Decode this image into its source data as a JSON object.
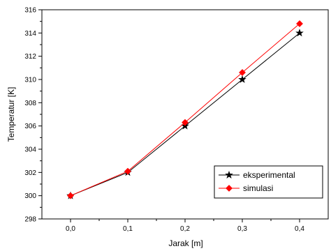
{
  "chart_data": {
    "type": "line",
    "title": "",
    "xlabel": "Jarak [m]",
    "ylabel": "Temperatur [K]",
    "x": [
      0.0,
      0.1,
      0.2,
      0.3,
      0.4
    ],
    "x_tick_labels": [
      "0,0",
      "0,1",
      "0,2",
      "0,3",
      "0,4"
    ],
    "xlim": [
      -0.05,
      0.45
    ],
    "ylim": [
      298,
      316
    ],
    "y_ticks": [
      298,
      300,
      302,
      304,
      306,
      308,
      310,
      312,
      314,
      316
    ],
    "grid": false,
    "legend_position": "bottom-right",
    "series": [
      {
        "name": "eksperimental",
        "values": [
          300.0,
          302.0,
          306.0,
          310.0,
          314.0
        ],
        "color": "#000000",
        "marker": "star"
      },
      {
        "name": "simulasi",
        "values": [
          300.0,
          302.1,
          306.3,
          310.6,
          314.8
        ],
        "color": "#ff0000",
        "marker": "diamond"
      }
    ]
  }
}
